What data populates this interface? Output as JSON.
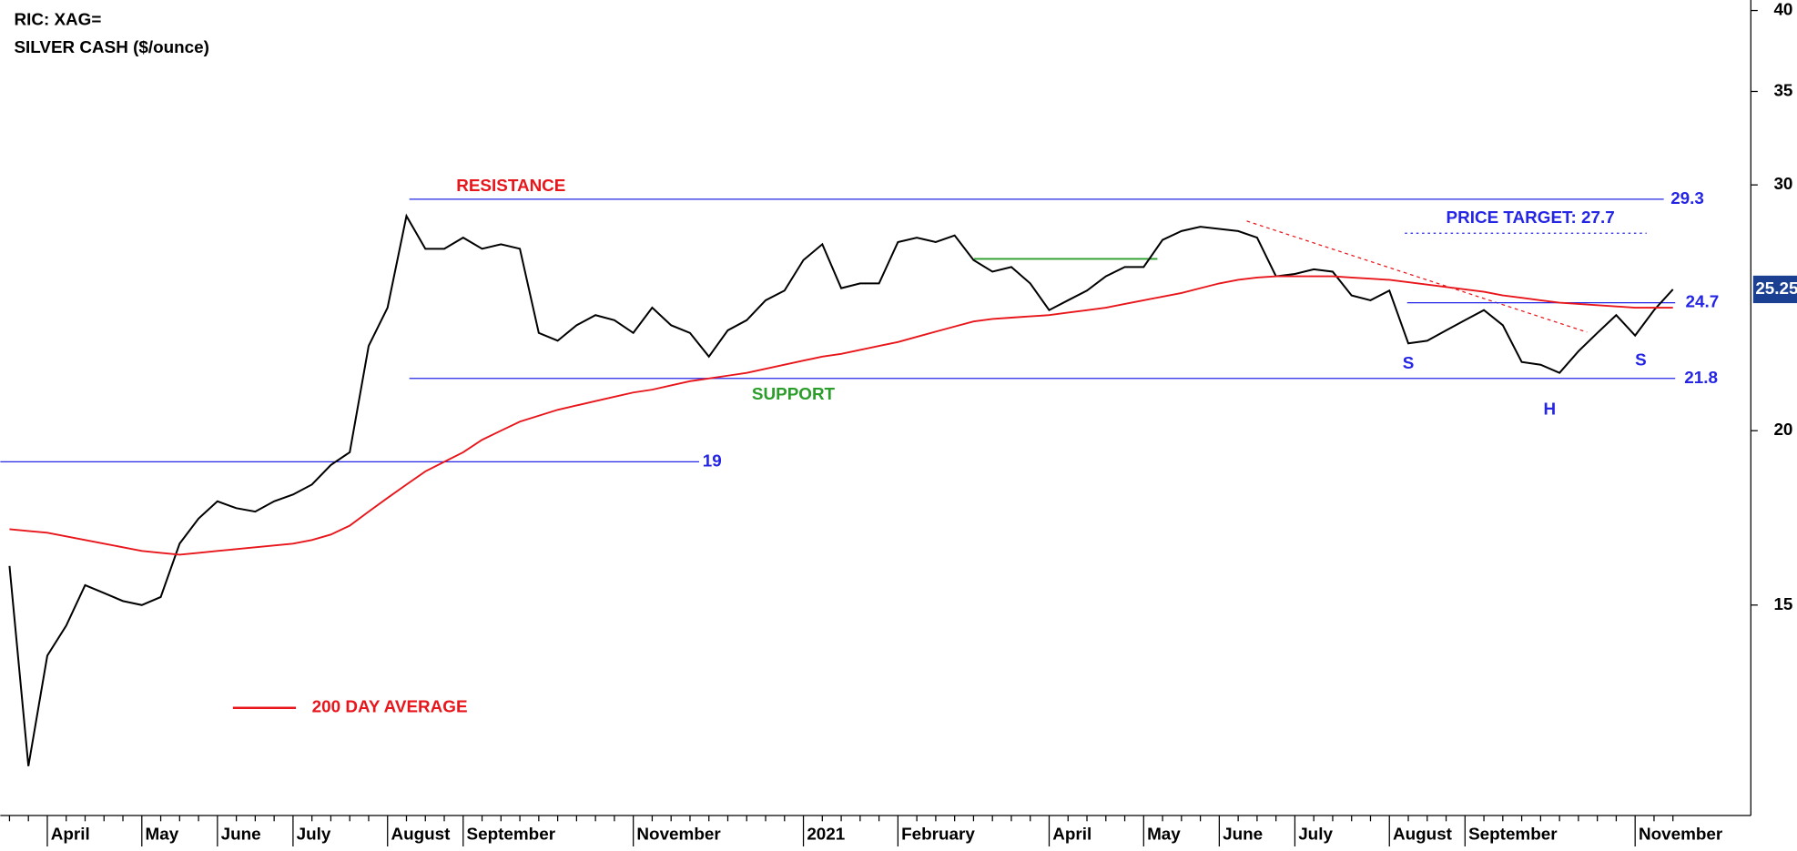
{
  "chart_data": {
    "type": "line",
    "title": "RIC: XAG=",
    "subtitle": "SILVER CASH ($/ounce)",
    "categories": [
      null,
      null,
      "April",
      null,
      null,
      null,
      null,
      "May",
      null,
      null,
      null,
      "June",
      null,
      null,
      null,
      "July",
      null,
      null,
      null,
      null,
      "August",
      null,
      null,
      null,
      "September",
      null,
      null,
      null,
      null,
      null,
      null,
      null,
      null,
      "November",
      null,
      null,
      null,
      null,
      null,
      null,
      null,
      null,
      "2021",
      null,
      null,
      null,
      null,
      "February",
      null,
      null,
      null,
      null,
      null,
      null,
      null,
      "April",
      null,
      null,
      null,
      null,
      "May",
      null,
      null,
      null,
      "June",
      null,
      null,
      null,
      "July",
      null,
      null,
      null,
      null,
      "August",
      null,
      null,
      null,
      "September",
      null,
      null,
      null,
      null,
      null,
      null,
      null,
      null,
      "November",
      null,
      null
    ],
    "series": [
      {
        "color": "#000000",
        "values": [
          16.0,
          11.5,
          13.8,
          14.5,
          15.5,
          15.3,
          15.1,
          15.0,
          15.2,
          16.6,
          17.3,
          17.8,
          17.6,
          17.5,
          17.8,
          18.0,
          18.3,
          18.9,
          19.3,
          23.0,
          24.5,
          28.5,
          27.0,
          27.0,
          27.5,
          27.0,
          27.2,
          27.0,
          23.5,
          23.2,
          23.8,
          24.2,
          24.0,
          23.5,
          24.5,
          23.8,
          23.5,
          22.6,
          23.6,
          24.0,
          24.8,
          25.2,
          26.5,
          27.2,
          25.3,
          25.5,
          25.5,
          27.3,
          27.5,
          27.3,
          27.6,
          26.5,
          26.0,
          26.2,
          25.5,
          24.4,
          24.8,
          25.2,
          25.8,
          26.2,
          26.2,
          27.4,
          27.8,
          28.0,
          27.9,
          27.8,
          27.5,
          25.8,
          25.9,
          26.1,
          26.0,
          25.0,
          24.8,
          25.2,
          23.1,
          23.2,
          23.6,
          24.0,
          24.4,
          23.8,
          22.4,
          22.3,
          22.0,
          22.8,
          23.5,
          24.2,
          23.4,
          24.4,
          25.25
        ]
      },
      {
        "name": "200 DAY AVERAGE",
        "color": "#e8161b",
        "values": [
          17.0,
          16.95,
          16.9,
          16.8,
          16.7,
          16.6,
          16.5,
          16.4,
          16.35,
          16.3,
          16.35,
          16.4,
          16.45,
          16.5,
          16.55,
          16.6,
          16.7,
          16.85,
          17.1,
          17.5,
          17.9,
          18.3,
          18.7,
          19.0,
          19.3,
          19.7,
          20.0,
          20.3,
          20.5,
          20.7,
          20.85,
          21.0,
          21.15,
          21.3,
          21.4,
          21.55,
          21.7,
          21.8,
          21.9,
          22.0,
          22.15,
          22.3,
          22.45,
          22.6,
          22.7,
          22.85,
          23.0,
          23.15,
          23.35,
          23.55,
          23.75,
          23.95,
          24.05,
          24.1,
          24.15,
          24.2,
          24.3,
          24.4,
          24.5,
          24.65,
          24.8,
          24.95,
          25.1,
          25.3,
          25.5,
          25.65,
          25.75,
          25.8,
          25.8,
          25.8,
          25.8,
          25.75,
          25.7,
          25.65,
          25.55,
          25.45,
          25.35,
          25.25,
          25.15,
          25.0,
          24.9,
          24.8,
          24.7,
          24.65,
          24.6,
          24.55,
          24.5,
          24.5,
          24.5
        ]
      }
    ],
    "ylim": [
      10.6,
      40.7
    ],
    "yticks": [
      15,
      20,
      30,
      35,
      40
    ],
    "log_scale": true,
    "grid": false,
    "levels": [
      29.3,
      21.8,
      19,
      24.7
    ],
    "price_target": {
      "value": 27.7,
      "label": "PRICE TARGET: 27.7"
    },
    "last_price": 25.25,
    "annotations": [
      "RESISTANCE",
      "SUPPORT",
      "S",
      "H",
      "S"
    ]
  }
}
